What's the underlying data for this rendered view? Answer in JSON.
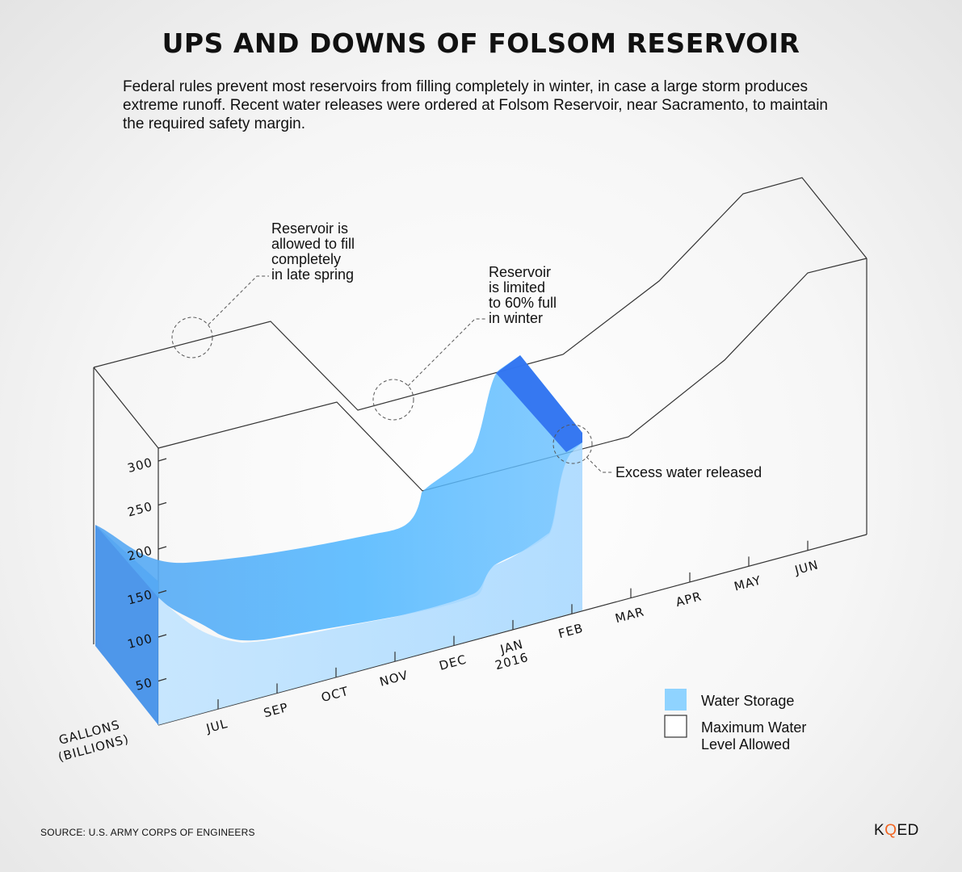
{
  "chart_data": {
    "type": "area",
    "title": "UPS AND DOWNS OF FOLSOM RESERVOIR",
    "subtitle": "Federal rules prevent most reservoirs from filling completely in winter, in case a large storm produces extreme runoff. Recent water releases were ordered at Folsom Reservoir, near Sacramento, to maintain the required safety margin.",
    "ylabel": [
      "GALLONS",
      "(BILLIONS)"
    ],
    "ylim": [
      0,
      300
    ],
    "yticks": [
      50,
      100,
      150,
      200,
      250,
      300
    ],
    "x_tick_labels": [
      "JUL",
      "SEP",
      "OCT",
      "NOV",
      "DEC",
      "JAN 2016",
      "FEB",
      "MAR",
      "APR",
      "MAY",
      "JUN"
    ],
    "series": [
      {
        "name": "Water Storage",
        "color": "#7fcfff",
        "x": [
          0,
          0.5,
          1,
          2,
          3,
          4,
          4.6,
          5.0,
          5.3,
          5.5,
          6.0
        ],
        "values": [
          195,
          180,
          175,
          168,
          160,
          150,
          150,
          212,
          266,
          240,
          236
        ]
      },
      {
        "name": "Maximum Water Level Allowed",
        "color": "#ffffff",
        "x": [
          0,
          1.8,
          2.5,
          4.3,
          4.7,
          6.0,
          8.0,
          9.0,
          10.0,
          11.0
        ],
        "values": [
          270,
          270,
          200,
          200,
          238,
          238,
          300,
          355,
          350,
          300
        ]
      }
    ],
    "annotations": [
      [
        "Reservoir is",
        "allowed to fill",
        "completely",
        "in late spring"
      ],
      [
        "Reservoir",
        "is limited",
        "to 60% full",
        "in winter"
      ],
      [
        "Excess water released"
      ]
    ],
    "legend": [
      {
        "label": [
          "Water Storage"
        ],
        "swatch": "#8fd3ff"
      },
      {
        "label": [
          "Maximum Water",
          "Level Allowed"
        ],
        "swatch": "#ffffff"
      }
    ],
    "grid": false,
    "legend_position": "bottom-right"
  },
  "source": "SOURCE: U.S. ARMY CORPS OF ENGINEERS",
  "logo": {
    "text": "KQED",
    "parts": [
      "K",
      "Q",
      "ED"
    ],
    "accent": "#f26522"
  },
  "colors": {
    "water_front": "#5fb4f4",
    "water_top": "#2f8ff0",
    "water_side": "#3d8ee8",
    "released": "#2d6ff0"
  }
}
